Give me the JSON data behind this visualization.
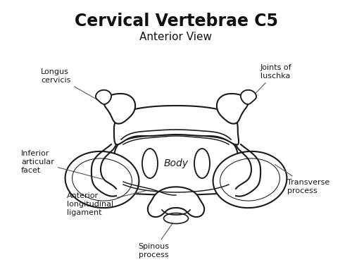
{
  "title": "Cervical Vertebrae C5",
  "subtitle": "Anterior View",
  "title_fontsize": 17,
  "subtitle_fontsize": 11,
  "background_color": "#ffffff",
  "line_color": "#1a1a1a",
  "line_width": 1.5,
  "labels": {
    "longus_cervicis": "Longus\ncervicis",
    "joints_luschka": "Joints of\nluschka",
    "inferior_articular_facet": "Inferior\narticular\nfacet",
    "body": "Body",
    "anterior_longitudinal_ligament": "Anterior\nlongitudinal\nligament",
    "spinous_process": "Spinous\nprocess",
    "transverse_process": "Transverse\nprocess"
  },
  "label_fontsize": 8
}
